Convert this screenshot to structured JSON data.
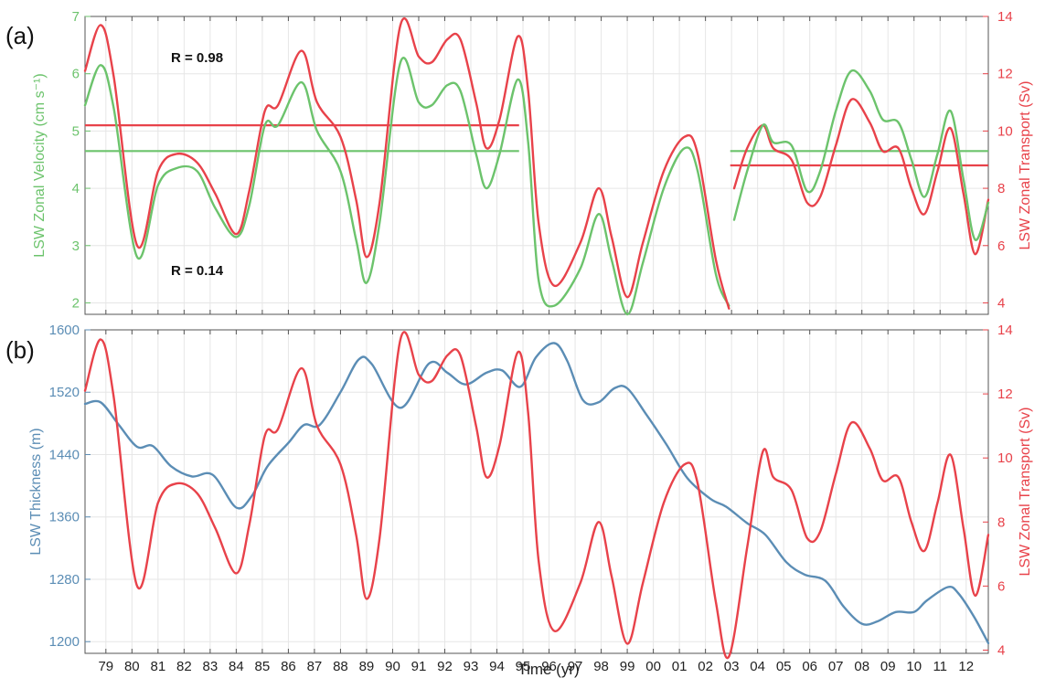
{
  "colors": {
    "green": "#6cc36c",
    "red": "#e8424a",
    "blue": "#5b8db5",
    "grid": "#e6e6e6",
    "axis": "#333333"
  },
  "panels": [
    {
      "tag": "(a)",
      "r_label": "R = 0.98"
    },
    {
      "tag": "(b)",
      "r_label": "R = 0.14"
    }
  ],
  "xlabel": "Time (yr)",
  "chart_data": [
    {
      "type": "line",
      "panel": "(a)",
      "annotation": "R = 0.98",
      "xlabel": "Time (yr)",
      "ylabel": "LSW Zonal Velocity (cm s⁻¹)",
      "y2label": "LSW Zonal Transport (Sv)",
      "xlim": [
        1978.2,
        2012.85
      ],
      "ylim": [
        1.8,
        7
      ],
      "y2lim": [
        3.6,
        14
      ],
      "yticks": [
        2,
        3,
        4,
        5,
        6,
        7
      ],
      "y2ticks": [
        4,
        6,
        8,
        10,
        12,
        14
      ],
      "grid": true,
      "series": [
        {
          "axis": "left",
          "color": "green",
          "x": [
            1978.2,
            1978.8,
            1979.3,
            1980.2,
            1981,
            1981.7,
            1982.5,
            1983.2,
            1984,
            1984.5,
            1985.1,
            1985.6,
            1986.5,
            1987.1,
            1988,
            1988.6,
            1989,
            1989.5,
            1990.3,
            1991,
            1991.5,
            1992.1,
            1992.6,
            1993.2,
            1993.6,
            1994.1,
            1994.8,
            1995.2,
            1995.6,
            1996.2,
            1997.2,
            1997.9,
            1998.4,
            1999,
            1999.6,
            2000.4,
            2001.2,
            2001.7,
            2002.4,
            2002.9
          ],
          "y": [
            5.45,
            6.15,
            5.4,
            2.8,
            4.05,
            4.35,
            4.3,
            3.65,
            3.15,
            3.7,
            5.1,
            5.1,
            5.85,
            5.0,
            4.3,
            3.1,
            2.35,
            3.4,
            6.2,
            5.5,
            5.45,
            5.8,
            5.7,
            4.6,
            4.0,
            4.6,
            5.9,
            4.8,
            2.4,
            1.95,
            2.6,
            3.55,
            2.75,
            1.8,
            2.7,
            4.0,
            4.7,
            4.3,
            2.5,
            1.95
          ]
        },
        {
          "axis": "right",
          "color": "red",
          "x": [
            1978.2,
            1978.8,
            1979.3,
            1980.2,
            1981,
            1981.7,
            1982.5,
            1983.2,
            1984,
            1984.5,
            1985.1,
            1985.6,
            1986.5,
            1987.1,
            1988,
            1988.6,
            1989,
            1989.5,
            1990.3,
            1991,
            1991.5,
            1992.1,
            1992.6,
            1993.2,
            1993.6,
            1994.1,
            1994.8,
            1995.2,
            1995.6,
            1996.2,
            1997.2,
            1997.9,
            1998.4,
            1999,
            1999.6,
            2000.4,
            2001.2,
            2001.7,
            2002.4,
            2002.9
          ],
          "y": [
            12.1,
            13.7,
            11.9,
            6.0,
            8.6,
            9.2,
            8.9,
            7.8,
            6.4,
            7.9,
            10.7,
            10.9,
            12.8,
            11.0,
            9.8,
            7.6,
            5.6,
            7.5,
            13.7,
            12.6,
            12.4,
            13.2,
            13.2,
            11.0,
            9.4,
            10.4,
            13.3,
            11.4,
            6.8,
            4.6,
            6.1,
            8.0,
            6.3,
            4.2,
            6.1,
            8.6,
            9.8,
            9.2,
            5.5,
            3.8
          ]
        },
        {
          "axis": "right",
          "color": "red",
          "x": [
            2003.1,
            2003.6,
            2004.2,
            2004.6,
            2005.3,
            2005.9,
            2006.4,
            2007.0,
            2007.6,
            2008.3,
            2008.8,
            2009.4,
            2009.9,
            2010.4,
            2010.9,
            2011.4,
            2011.9,
            2012.35,
            2012.85
          ],
          "y": [
            8.0,
            9.4,
            10.2,
            9.4,
            9.0,
            7.5,
            7.7,
            9.5,
            11.1,
            10.3,
            9.3,
            9.4,
            8.0,
            7.1,
            8.6,
            10.1,
            7.8,
            5.7,
            7.6
          ]
        },
        {
          "axis": "left",
          "color": "green",
          "x": [
            2003.1,
            2003.6,
            2004.2,
            2004.6,
            2005.3,
            2005.9,
            2006.4,
            2007.0,
            2007.6,
            2008.3,
            2008.8,
            2009.4,
            2009.9,
            2010.4,
            2010.9,
            2011.4,
            2011.9,
            2012.35,
            2012.85
          ],
          "y": [
            3.45,
            4.3,
            5.1,
            4.8,
            4.75,
            3.95,
            4.3,
            5.35,
            6.05,
            5.7,
            5.2,
            5.15,
            4.5,
            3.85,
            4.6,
            5.35,
            4.15,
            3.1,
            3.75
          ]
        }
      ],
      "hlines": [
        {
          "axis": "left",
          "color": "green",
          "y": 4.65,
          "x": [
            1978.2,
            1994.85
          ]
        },
        {
          "axis": "right",
          "color": "red",
          "y": 10.2,
          "x": [
            1978.2,
            1994.85
          ]
        },
        {
          "axis": "left",
          "color": "green",
          "y": 4.65,
          "x": [
            2002.95,
            2012.85
          ]
        },
        {
          "axis": "right",
          "color": "red",
          "y": 8.8,
          "x": [
            2002.95,
            2012.85
          ]
        }
      ]
    },
    {
      "type": "line",
      "panel": "(b)",
      "annotation": "R = 0.14",
      "xlabel": "Time (yr)",
      "ylabel": "LSW Thickness (m)",
      "y2label": "LSW Zonal Transport (Sv)",
      "xlim": [
        1978.2,
        2012.85
      ],
      "ylim": [
        1185,
        1600
      ],
      "y2lim": [
        3.9,
        14
      ],
      "yticks": [
        1200,
        1280,
        1360,
        1440,
        1520,
        1600
      ],
      "y2ticks": [
        4,
        6,
        8,
        10,
        12,
        14
      ],
      "xticks": [
        "79",
        "80",
        "81",
        "82",
        "83",
        "84",
        "85",
        "86",
        "87",
        "88",
        "89",
        "90",
        "91",
        "92",
        "93",
        "94",
        "95",
        "96",
        "97",
        "98",
        "99",
        "00",
        "01",
        "02",
        "03",
        "04",
        "05",
        "06",
        "07",
        "08",
        "09",
        "10",
        "11",
        "12"
      ],
      "grid": true,
      "series": [
        {
          "axis": "left",
          "color": "blue",
          "x": [
            1978.2,
            1978.8,
            1979.5,
            1980.2,
            1980.8,
            1981.5,
            1982.3,
            1983.1,
            1984.0,
            1984.6,
            1985.2,
            1986.0,
            1986.6,
            1987.2,
            1988.0,
            1988.7,
            1989.2,
            1990.3,
            1991.4,
            1992.1,
            1992.8,
            1993.6,
            1994.2,
            1994.9,
            1995.5,
            1996.2,
            1996.7,
            1997.3,
            1997.9,
            1998.5,
            1999.0,
            1999.7,
            2000.5,
            2001.3,
            2002.2,
            2002.8,
            2003.6,
            2004.3,
            2005.1,
            2005.8,
            2006.6,
            2007.3,
            2008.0,
            2008.6,
            2009.3,
            2010.0,
            2010.5,
            2011.3,
            2011.7,
            2012.3,
            2012.85
          ],
          "y": [
            1505,
            1507,
            1478,
            1450,
            1451,
            1425,
            1412,
            1414,
            1372,
            1387,
            1425,
            1455,
            1478,
            1478,
            1520,
            1562,
            1556,
            1500,
            1557,
            1545,
            1530,
            1545,
            1548,
            1527,
            1565,
            1583,
            1560,
            1510,
            1507,
            1525,
            1525,
            1493,
            1453,
            1410,
            1383,
            1373,
            1352,
            1337,
            1302,
            1286,
            1278,
            1245,
            1223,
            1226,
            1238,
            1238,
            1253,
            1270,
            1262,
            1232,
            1198
          ]
        },
        {
          "axis": "right",
          "color": "red",
          "x": [
            1978.2,
            1978.8,
            1979.3,
            1980.2,
            1981,
            1981.7,
            1982.5,
            1983.2,
            1984,
            1984.5,
            1985.1,
            1985.6,
            1986.5,
            1987.1,
            1988,
            1988.6,
            1989,
            1989.5,
            1990.3,
            1991,
            1991.5,
            1992.1,
            1992.6,
            1993.2,
            1993.6,
            1994.1,
            1994.8,
            1995.2,
            1995.6,
            1996.2,
            1997.2,
            1997.9,
            1998.4,
            1999,
            1999.6,
            2000.4,
            2001.2,
            2001.7,
            2002.4,
            2002.9,
            2003.6,
            2004.2,
            2004.6,
            2005.3,
            2005.9,
            2006.4,
            2007.0,
            2007.6,
            2008.3,
            2008.8,
            2009.4,
            2009.9,
            2010.4,
            2010.9,
            2011.4,
            2011.9,
            2012.35,
            2012.85
          ],
          "y": [
            12.1,
            13.7,
            11.9,
            6.0,
            8.6,
            9.2,
            8.9,
            7.8,
            6.4,
            7.9,
            10.7,
            10.9,
            12.8,
            11.0,
            9.8,
            7.6,
            5.6,
            7.5,
            13.7,
            12.6,
            12.4,
            13.2,
            13.2,
            11.0,
            9.4,
            10.4,
            13.3,
            11.4,
            6.8,
            4.6,
            6.1,
            8.0,
            6.3,
            4.2,
            6.1,
            8.6,
            9.8,
            9.2,
            5.5,
            3.8,
            7.2,
            10.2,
            9.4,
            9.0,
            7.5,
            7.7,
            9.5,
            11.1,
            10.3,
            9.3,
            9.4,
            8.0,
            7.1,
            8.6,
            10.1,
            7.8,
            5.7,
            7.6
          ]
        }
      ],
      "hlines": []
    }
  ]
}
